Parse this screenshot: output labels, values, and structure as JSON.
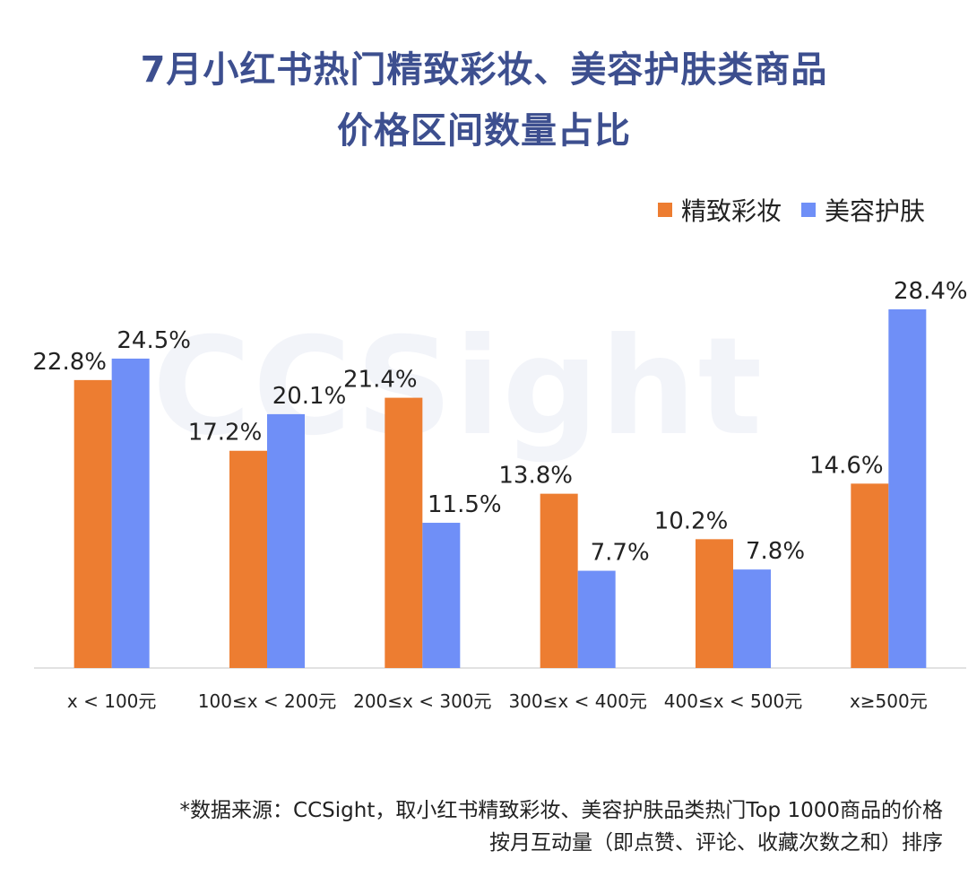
{
  "title_line1": "7月小红书热门精致彩妆、美容护肤类商品",
  "title_line2": "价格区间数量占比",
  "watermark": "CCSight",
  "legend": [
    {
      "label": "精致彩妆",
      "color": "#ed7d31"
    },
    {
      "label": "美容护肤",
      "color": "#6f8ff7"
    }
  ],
  "chart_data": {
    "type": "bar",
    "categories": [
      "x < 100元",
      "100≤x < 200元",
      "200≤x < 300元",
      "300≤x < 400元",
      "400≤x < 500元",
      "x≥500元"
    ],
    "series": [
      {
        "name": "精致彩妆",
        "values": [
          22.8,
          17.2,
          21.4,
          13.8,
          10.2,
          14.6
        ],
        "labels": [
          "22.8%",
          "17.2%",
          "21.4%",
          "13.8%",
          "10.2%",
          "14.6%"
        ]
      },
      {
        "name": "美容护肤",
        "values": [
          24.5,
          20.1,
          11.5,
          7.7,
          7.8,
          28.4
        ],
        "labels": [
          "24.5%",
          "20.1%",
          "11.5%",
          "7.7%",
          "7.8%",
          "28.4%"
        ]
      }
    ],
    "ylim": [
      0,
      30
    ],
    "grid": false,
    "legend_position": "top-right"
  },
  "footnote_line1": "*数据来源：CCSight，取小红书精致彩妆、美容护肤品类热门Top 1000商品的价格",
  "footnote_line2": "按月互动量（即点赞、评论、收藏次数之和）排序"
}
